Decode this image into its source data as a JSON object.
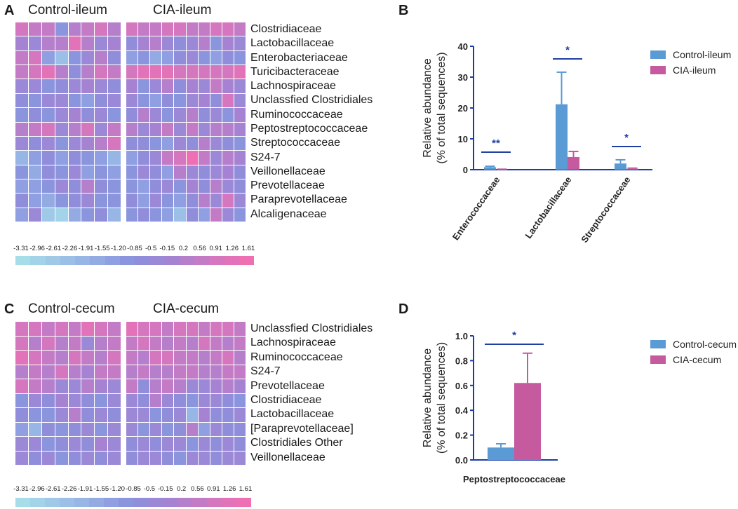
{
  "colors": {
    "control": "#5b9bd5",
    "cia": "#c55a9e",
    "sig_line": "#1f3fa3",
    "axis": "#1c3ca6",
    "scale": [
      "#a6dde8",
      "#a2d3e8",
      "#9fc9e7",
      "#9bbfe6",
      "#97b5e5",
      "#93aae3",
      "#8f9fe1",
      "#8b95de",
      "#908dda",
      "#9b88d6",
      "#a683d2",
      "#b57fcc",
      "#c47bc6",
      "#d477bf",
      "#e273b8",
      "#ee70b3"
    ]
  },
  "panels": {
    "A": {
      "letter": "A",
      "group_left": "Control-ileum",
      "group_right": "CIA-ileum",
      "rows": [
        "Clostridiaceae",
        "Lactobacillaceae",
        "Enterobacteriaceae",
        "Turicibacteraceae",
        "Lachnospiraceae",
        "Unclassfied Clostridiales",
        "Ruminococcaceae",
        "Peptostreptococcaceae",
        "Streptococcaceae",
        "S24-7",
        "Veillonellaceae",
        "Prevotellaceae",
        "Paraprevotellaceae",
        "Alcaligenaceae"
      ],
      "left_cols": 8,
      "right_cols": 10
    },
    "C": {
      "letter": "C",
      "group_left": "Control-cecum",
      "group_right": "CIA-cecum",
      "rows": [
        "Unclassfied Clostridiales",
        "Lachnospiraceae",
        "Ruminococcaceae",
        "S24-7",
        "Prevotellaceae",
        "Clostridiaceae",
        "Lactobacillaceae",
        "[Paraprevotellaceae]",
        "Clostridiales Other",
        "Veillonellaceae"
      ],
      "left_cols": 8,
      "right_cols": 10
    },
    "B": {
      "letter": "B"
    },
    "D": {
      "letter": "D"
    }
  },
  "colorbar_ticks": [
    "-3.31",
    "-2.96",
    "-2.61",
    "-2.26",
    "-1.91",
    "-1.55",
    "-1.20",
    "-0.85",
    "-0.5",
    "-0.15",
    "0.2",
    "0.56",
    "0.91",
    "1.26",
    "1.61"
  ],
  "chart_data": [
    {
      "panel": "A",
      "type": "heatmap",
      "title": "Control-ileum vs CIA-ileum",
      "rows": [
        "Clostridiaceae",
        "Lactobacillaceae",
        "Enterobacteriaceae",
        "Turicibacteraceae",
        "Lachnospiraceae",
        "Unclassfied Clostridiales",
        "Ruminococcaceae",
        "Peptostreptococcaceae",
        "Streptococcaceae",
        "S24-7",
        "Veillonellaceae",
        "Prevotellaceae",
        "Paraprevotellaceae",
        "Alcaligenaceae"
      ],
      "groups": [
        "Control-ileum",
        "CIA-ileum"
      ],
      "color_range": [
        -3.31,
        1.61
      ],
      "values": [
        [
          0.9,
          0.7,
          0.5,
          -0.9,
          0.4,
          0.6,
          1.0,
          0.3,
          0.8,
          0.5,
          0.7,
          0.9,
          1.1,
          0.6,
          0.5,
          0.8,
          0.9,
          0.7
        ],
        [
          0.1,
          -0.3,
          0.2,
          0.4,
          1.2,
          0.3,
          -0.2,
          0.0,
          -0.6,
          -0.1,
          0.2,
          -0.4,
          -0.8,
          -0.2,
          0.3,
          -1.1,
          0.1,
          -0.3
        ],
        [
          0.5,
          0.8,
          -1.3,
          -2.2,
          -1.0,
          -0.4,
          0.2,
          -0.7,
          -1.5,
          -0.9,
          -1.6,
          -1.2,
          -0.8,
          -0.5,
          -1.0,
          -1.3,
          -0.6,
          -1.1
        ],
        [
          0.7,
          0.9,
          1.2,
          0.4,
          -0.8,
          0.3,
          0.9,
          0.6,
          1.1,
          1.2,
          1.4,
          1.3,
          1.0,
          0.9,
          1.1,
          0.8,
          1.0,
          1.2
        ],
        [
          -0.4,
          -0.2,
          -0.9,
          -0.6,
          -0.3,
          0.1,
          -0.5,
          -0.7,
          0.1,
          -1.0,
          -0.3,
          0.2,
          -0.6,
          0.0,
          -0.2,
          0.6,
          0.1,
          -0.4
        ],
        [
          -0.8,
          -1.1,
          -0.5,
          -0.3,
          -0.9,
          -1.2,
          -0.6,
          -0.4,
          -0.3,
          -0.9,
          -1.2,
          -0.6,
          -1.0,
          -0.2,
          0.1,
          -0.8,
          0.9,
          -0.5
        ],
        [
          -1.1,
          -0.7,
          -0.9,
          -0.5,
          0.1,
          -0.6,
          -0.3,
          -1.0,
          -0.7,
          0.2,
          -0.4,
          -1.1,
          -0.3,
          0.3,
          -0.6,
          -0.2,
          -0.9,
          0.1
        ],
        [
          0.2,
          0.5,
          1.0,
          -0.4,
          0.3,
          0.8,
          -0.5,
          0.6,
          0.4,
          -0.3,
          0.1,
          0.6,
          -0.2,
          0.5,
          -0.4,
          0.2,
          0.3,
          -0.1
        ],
        [
          -0.3,
          -0.6,
          -0.2,
          -0.9,
          -0.5,
          -0.1,
          0.3,
          0.9,
          -0.8,
          -0.6,
          -0.9,
          -1.2,
          -0.3,
          -0.7,
          0.2,
          -0.4,
          -0.6,
          -0.9
        ],
        [
          -1.9,
          -1.2,
          -0.8,
          -1.4,
          -0.6,
          -1.0,
          -1.5,
          -2.0,
          -1.2,
          -0.8,
          -0.5,
          0.6,
          0.9,
          1.6,
          0.7,
          -0.3,
          0.4,
          0.1
        ],
        [
          -1.0,
          -1.6,
          -0.7,
          -1.1,
          -0.5,
          -1.3,
          -0.9,
          -1.4,
          -1.1,
          -0.3,
          -0.6,
          -1.2,
          0.2,
          -0.5,
          -0.8,
          -0.4,
          0.1,
          -0.7
        ],
        [
          -1.5,
          -1.2,
          -1.0,
          -0.4,
          -0.8,
          0.2,
          -0.6,
          -1.1,
          -0.9,
          -1.3,
          -0.7,
          -0.4,
          -1.0,
          0.1,
          -0.6,
          0.3,
          -0.5,
          -0.8
        ],
        [
          -0.6,
          -1.3,
          -1.8,
          -1.0,
          -0.7,
          -0.4,
          -1.1,
          -0.9,
          -0.8,
          -1.2,
          -0.3,
          -0.9,
          -1.4,
          -0.6,
          0.4,
          -0.2,
          1.0,
          -0.5
        ],
        [
          -1.2,
          -0.5,
          -2.6,
          -3.0,
          -1.7,
          -1.0,
          -0.8,
          -1.9,
          -1.1,
          -0.6,
          -0.9,
          -1.5,
          -2.4,
          -0.7,
          -1.2,
          0.5,
          -0.3,
          -1.0
        ]
      ]
    },
    {
      "panel": "B",
      "type": "bar",
      "categories": [
        "Enterococcaceae",
        "Lactobacillaceae",
        "Streptococcaceae"
      ],
      "series": [
        {
          "name": "Control-ileum",
          "values": [
            0.8,
            21.2,
            2.0
          ],
          "errors": [
            0.3,
            10.4,
            1.2
          ]
        },
        {
          "name": "CIA-ileum",
          "values": [
            0.1,
            4.1,
            0.3
          ],
          "errors": [
            0.05,
            1.8,
            0.2
          ]
        }
      ],
      "significance": [
        "**",
        "*",
        "*"
      ],
      "ylabel": "Relative abundance",
      "ylabel2": "(% of total sequences)",
      "ylim": [
        0,
        40
      ],
      "yticks": [
        0,
        10,
        20,
        30,
        40
      ],
      "legend": "top-right"
    },
    {
      "panel": "C",
      "type": "heatmap",
      "title": "Control-cecum vs CIA-cecum",
      "rows": [
        "Unclassfied Clostridiales",
        "Lachnospiraceae",
        "Ruminococcaceae",
        "S24-7",
        "Prevotellaceae",
        "Clostridiaceae",
        "Lactobacillaceae",
        "[Paraprevotellaceae]",
        "Clostridiales Other",
        "Veillonellaceae"
      ],
      "groups": [
        "Control-cecum",
        "CIA-cecum"
      ],
      "color_range": [
        -3.31,
        1.61
      ],
      "values": [
        [
          1.1,
          0.8,
          0.6,
          0.9,
          0.7,
          1.2,
          0.8,
          0.5,
          1.3,
          1.0,
          0.9,
          0.7,
          1.1,
          0.8,
          0.6,
          0.9,
          1.0,
          0.7
        ],
        [
          0.8,
          0.4,
          0.9,
          0.2,
          0.6,
          -0.4,
          0.3,
          0.7,
          0.5,
          0.9,
          0.6,
          0.4,
          0.7,
          0.3,
          0.8,
          0.5,
          0.2,
          0.6
        ],
        [
          1.4,
          0.9,
          0.5,
          0.3,
          0.8,
          0.6,
          0.2,
          0.9,
          0.7,
          0.4,
          0.8,
          0.9,
          0.5,
          0.6,
          0.3,
          0.7,
          0.9,
          0.4
        ],
        [
          0.3,
          0.6,
          0.2,
          0.8,
          0.4,
          0.1,
          0.7,
          0.5,
          0.4,
          0.6,
          0.3,
          0.2,
          0.5,
          0.7,
          0.4,
          0.3,
          0.6,
          0.5
        ],
        [
          0.9,
          0.5,
          0.3,
          -0.5,
          -0.2,
          0.4,
          0.1,
          -0.3,
          0.6,
          -0.6,
          0.2,
          0.5,
          0.4,
          -0.2,
          -0.4,
          0.1,
          0.3,
          -0.1
        ],
        [
          -0.9,
          -0.4,
          -0.7,
          0.1,
          -0.2,
          -0.8,
          -1.0,
          -0.5,
          -0.3,
          -0.6,
          0.2,
          -0.4,
          -0.8,
          -1.1,
          -0.5,
          -0.2,
          -0.7,
          -0.9
        ],
        [
          -0.6,
          -0.9,
          -1.1,
          -0.4,
          0.3,
          -0.7,
          -0.5,
          -0.8,
          -0.5,
          -0.3,
          -0.9,
          -0.7,
          -0.4,
          -2.1,
          0.1,
          -0.6,
          -0.8,
          -0.5
        ],
        [
          -1.2,
          -2.0,
          -0.8,
          -1.1,
          -0.6,
          -0.3,
          -1.0,
          -0.4,
          -0.2,
          -0.9,
          -0.4,
          -1.0,
          -0.7,
          0.2,
          -1.2,
          -0.3,
          -0.8,
          -0.6
        ],
        [
          -0.5,
          -0.2,
          -0.9,
          -0.6,
          -0.3,
          -0.8,
          -0.1,
          -0.4,
          -0.6,
          -0.3,
          -0.8,
          -0.2,
          -0.5,
          -0.9,
          -0.4,
          -0.7,
          -0.3,
          -0.6
        ],
        [
          -0.3,
          -0.7,
          -0.2,
          -0.9,
          -0.6,
          -0.4,
          -0.8,
          -0.5,
          -0.7,
          -0.4,
          -0.2,
          -0.6,
          -0.9,
          -0.3,
          -0.5,
          -0.8,
          -0.4,
          -0.2
        ]
      ]
    },
    {
      "panel": "D",
      "type": "bar",
      "categories": [
        "Peptostreptococcaceae"
      ],
      "series": [
        {
          "name": "Control-cecum",
          "values": [
            0.1
          ],
          "errors": [
            0.03
          ]
        },
        {
          "name": "CIA-cecum",
          "values": [
            0.62
          ],
          "errors": [
            0.24
          ]
        }
      ],
      "significance": [
        "*"
      ],
      "ylabel": "Relative abundance",
      "ylabel2": "(% of total sequences)",
      "ylim": [
        0,
        1.0
      ],
      "yticks": [
        "0.0",
        "0.2",
        "0.4",
        "0.6",
        "0.8",
        "1.0"
      ],
      "legend": "top-right"
    }
  ]
}
